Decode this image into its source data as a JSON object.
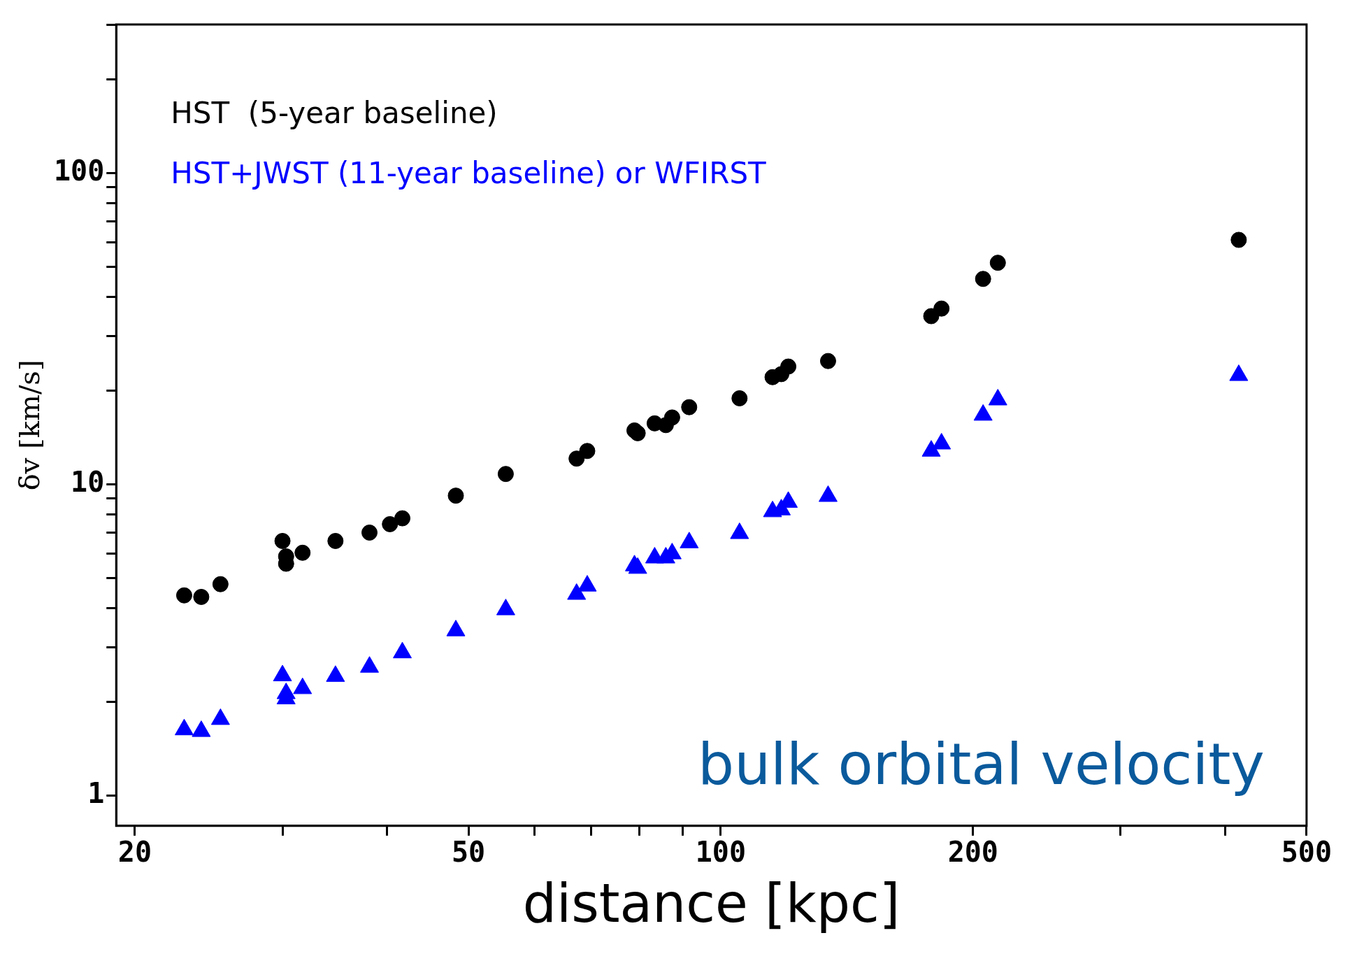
{
  "chart_data": {
    "type": "scatter",
    "xlabel": "distance [kpc]",
    "ylabel": "δv [km/s]",
    "log": "xy",
    "grid": false,
    "legend": "top left",
    "xlim": [
      19,
      500
    ],
    "ylim": [
      0.8,
      300
    ],
    "xticks": [
      20,
      {
        "value": 30,
        "label": null
      },
      {
        "value": 40,
        "label": null
      },
      50,
      {
        "value": 60,
        "label": null
      },
      {
        "value": 70,
        "label": null
      },
      {
        "value": 80,
        "label": null
      },
      {
        "value": 90,
        "label": null
      },
      100,
      200,
      {
        "value": 300,
        "label": null
      },
      {
        "value": 400,
        "label": null
      },
      500
    ],
    "yticks": [
      1,
      {
        "value": 2,
        "label": null
      },
      {
        "value": 3,
        "label": null
      },
      {
        "value": 4,
        "label": null
      },
      {
        "value": 5,
        "label": null
      },
      {
        "value": 6,
        "label": null
      },
      {
        "value": 7,
        "label": null
      },
      {
        "value": 8,
        "label": null
      },
      {
        "value": 9,
        "label": null
      },
      10,
      {
        "value": 20,
        "label": null
      },
      {
        "value": 30,
        "label": null
      },
      {
        "value": 40,
        "label": null
      },
      {
        "value": 50,
        "label": null
      },
      {
        "value": 60,
        "label": null
      },
      {
        "value": 70,
        "label": null
      },
      {
        "value": 80,
        "label": null
      },
      {
        "value": 90,
        "label": null
      },
      100,
      {
        "value": 200,
        "label": null
      },
      {
        "value": 300,
        "label": null
      }
    ],
    "x": [
      22.9,
      24.0,
      25.3,
      30.0,
      30.3,
      30.3,
      31.7,
      34.7,
      38.1,
      40.3,
      41.7,
      48.3,
      55.4,
      67.3,
      69.3,
      78.9,
      79.6,
      83.4,
      86.0,
      87.5,
      91.7,
      105.3,
      115.3,
      118.1,
      120.4,
      134.3,
      178.3,
      183.4,
      205.6,
      214.1,
      415
    ],
    "series": [
      {
        "name": "HST  (5-year baseline)",
        "color": "#000000",
        "marker": "circle",
        "values": [
          4.4,
          4.35,
          4.78,
          6.58,
          5.87,
          5.56,
          6.03,
          6.58,
          7.0,
          7.45,
          7.78,
          9.2,
          10.8,
          12.1,
          12.8,
          14.9,
          14.6,
          15.7,
          15.5,
          16.4,
          17.7,
          18.9,
          22.1,
          22.6,
          23.9,
          24.9,
          34.7,
          36.7,
          45.7,
          51.5,
          61.0
        ]
      },
      {
        "name": "HST+JWST (11-year baseline) or WFIRST",
        "color": "#0000ff",
        "marker": "triangle",
        "values": [
          1.63,
          1.61,
          1.76,
          2.43,
          2.13,
          2.05,
          2.21,
          2.42,
          2.59,
          null,
          2.88,
          3.39,
          3.96,
          4.44,
          4.72,
          5.48,
          5.38,
          5.81,
          5.81,
          5.99,
          6.5,
          6.96,
          8.18,
          8.29,
          8.77,
          9.16,
          12.8,
          13.5,
          16.7,
          18.7,
          22.4
        ]
      }
    ],
    "annotations": [
      "bulk orbital velocity"
    ]
  }
}
